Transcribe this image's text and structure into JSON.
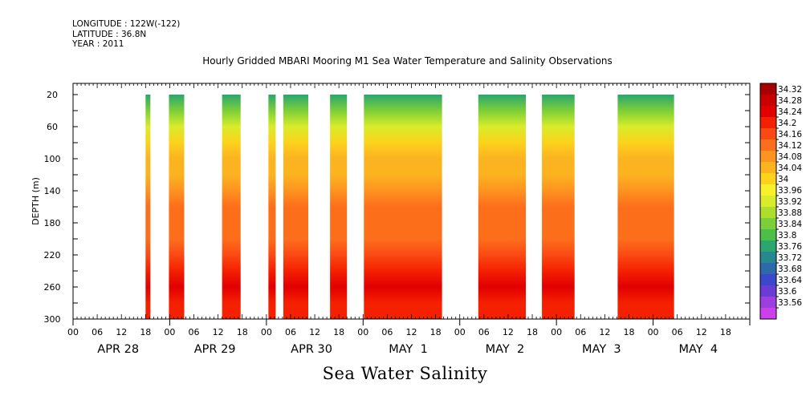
{
  "header": {
    "longitude": "LONGITUDE : 122W(-122)",
    "latitude": "LATITUDE : 36.8N",
    "year": "YEAR : 2011"
  },
  "chart_data": {
    "type": "heatmap",
    "title": "Hourly Gridded MBARI Mooring M1 Sea Water Temperature and Salinity Observations",
    "bottom_title": "Sea Water Salinity",
    "ylabel": "DEPTH (m)",
    "ylim": [
      300,
      0
    ],
    "y_ticks": [
      20,
      60,
      100,
      140,
      180,
      220,
      260,
      300
    ],
    "xlim_hours": [
      0,
      168
    ],
    "x_hour_ticks": [
      "00",
      "06",
      "12",
      "18",
      "00",
      "06",
      "12",
      "18",
      "00",
      "06",
      "12",
      "18",
      "00",
      "06",
      "12",
      "18",
      "00",
      "06",
      "12",
      "18",
      "00",
      "06",
      "12",
      "18",
      "00",
      "06",
      "12",
      "18"
    ],
    "date_labels": [
      "APR 28",
      "APR 29",
      "APR 30",
      "MAY  1",
      "MAY  2",
      "MAY  3",
      "MAY  4"
    ],
    "colorbar": {
      "levels": [
        "34.32",
        "34.28",
        "34.24",
        "34.2",
        "34.16",
        "34.12",
        "34.08",
        "34.04",
        "34",
        "33.96",
        "33.92",
        "33.88",
        "33.84",
        "33.8",
        "33.76",
        "33.72",
        "33.68",
        "33.64",
        "33.6",
        "33.56"
      ],
      "colors": [
        "#a60000",
        "#c80000",
        "#e10000",
        "#f52000",
        "#fa4a14",
        "#fd6e1a",
        "#fd9320",
        "#fcb320",
        "#fcd21c",
        "#f7f02a",
        "#d8ec2a",
        "#aede2c",
        "#7ccf38",
        "#4cbf48",
        "#2aa66e",
        "#27888e",
        "#2c6aaa",
        "#3c48cc",
        "#6a3cd6",
        "#9c3ee0",
        "#cc40ec"
      ]
    },
    "data_segments_hours": [
      {
        "start": 18.0,
        "end": 19.2
      },
      {
        "start": 23.8,
        "end": 27.6
      },
      {
        "start": 37.0,
        "end": 41.6
      },
      {
        "start": 48.5,
        "end": 50.3
      },
      {
        "start": 52.2,
        "end": 58.4
      },
      {
        "start": 63.8,
        "end": 68.0
      },
      {
        "start": 72.2,
        "end": 91.6
      },
      {
        "start": 100.6,
        "end": 112.4
      },
      {
        "start": 116.4,
        "end": 124.5
      },
      {
        "start": 135.2,
        "end": 149.2
      }
    ],
    "depth_profile": [
      {
        "depth": 20,
        "salinity": 33.8
      },
      {
        "depth": 40,
        "salinity": 33.88
      },
      {
        "depth": 60,
        "salinity": 33.97
      },
      {
        "depth": 80,
        "salinity": 34.04
      },
      {
        "depth": 100,
        "salinity": 34.08
      },
      {
        "depth": 120,
        "salinity": 34.11
      },
      {
        "depth": 140,
        "salinity": 34.14
      },
      {
        "depth": 160,
        "salinity": 34.16
      },
      {
        "depth": 180,
        "salinity": 34.16
      },
      {
        "depth": 200,
        "salinity": 34.17
      },
      {
        "depth": 220,
        "salinity": 34.2
      },
      {
        "depth": 240,
        "salinity": 34.25
      },
      {
        "depth": 260,
        "salinity": 34.29
      },
      {
        "depth": 280,
        "salinity": 34.27
      },
      {
        "depth": 300,
        "salinity": 34.26
      }
    ]
  }
}
